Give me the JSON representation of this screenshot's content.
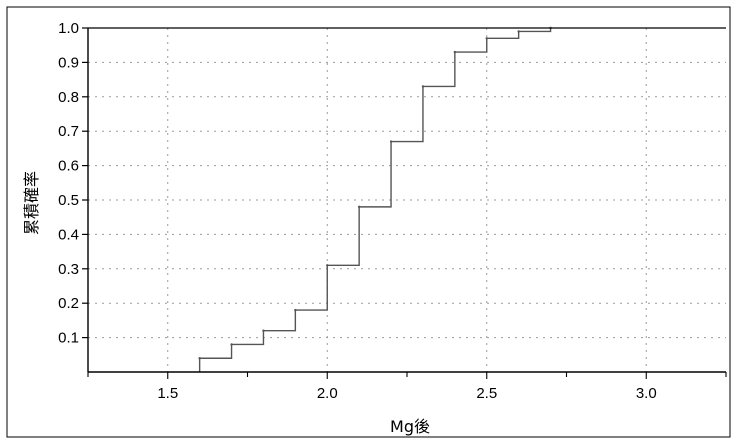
{
  "chart_data": {
    "type": "line",
    "step": true,
    "title": "",
    "xlabel": "Mg後",
    "ylabel": "累積確率",
    "xlim": [
      1.25,
      3.25
    ],
    "ylim": [
      0,
      1.0
    ],
    "x_ticks": [
      "1.5",
      "2.0",
      "2.5",
      "3.0"
    ],
    "y_ticks": [
      "0.1",
      "0.2",
      "0.3",
      "0.4",
      "0.5",
      "0.6",
      "0.7",
      "0.8",
      "0.9",
      "1.0"
    ],
    "grid": true,
    "series": [
      {
        "x": [
          1.6,
          1.7,
          1.8,
          1.9,
          2.0,
          2.1,
          2.2,
          2.3,
          2.4,
          2.5,
          2.6,
          2.7
        ],
        "y": [
          0.04,
          0.08,
          0.12,
          0.18,
          0.31,
          0.48,
          0.67,
          0.83,
          0.93,
          0.97,
          0.99,
          1.0
        ]
      }
    ],
    "colors": {
      "line": "#555555",
      "grid": "#9a9a9a",
      "axis": "#000000"
    }
  }
}
